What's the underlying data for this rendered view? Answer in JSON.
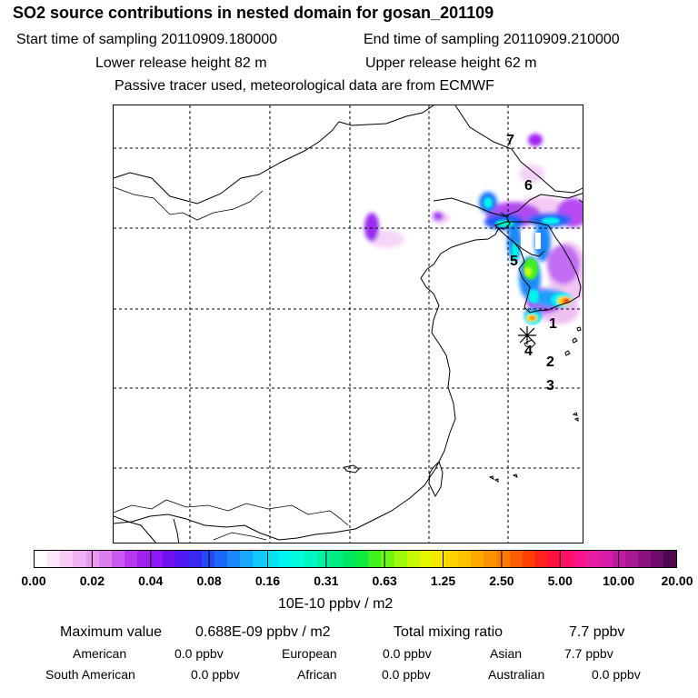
{
  "header": {
    "title": "SO2 source contributions in nested domain for gosan_201109",
    "start_time": "Start time of sampling 20110909.180000",
    "end_time": "End time of sampling 20110909.210000",
    "lower_height": "Lower release height   82 m",
    "upper_height": "Upper release height   62 m",
    "tracer_note": "Passive tracer used, meteorological data are from ECMWF"
  },
  "map": {
    "markers": [
      "1",
      "2",
      "3",
      "4",
      "5",
      "6",
      "7"
    ]
  },
  "colorbar": {
    "ticks": [
      "0.00",
      "0.02",
      "0.04",
      "0.08",
      "0.16",
      "0.31",
      "0.63",
      "1.25",
      "2.50",
      "5.00",
      "10.00",
      "20.00"
    ],
    "unit": "10E-10 ppbv / m2",
    "colors": [
      "#ffffff",
      "#fbe6fb",
      "#f6ccf6",
      "#f0b0f2",
      "#e699ee",
      "#d880ee",
      "#c85af0",
      "#b838f2",
      "#a020f0",
      "#8f18f4",
      "#6e10f0",
      "#5018f2",
      "#3828f4",
      "#2848f8",
      "#1c68fa",
      "#1c88fa",
      "#18a8fa",
      "#12c8f8",
      "#08e0f4",
      "#00f2ee",
      "#00fcdc",
      "#00f8c0",
      "#00f2a4",
      "#00ec84",
      "#00e660",
      "#10ea40",
      "#40f020",
      "#70f412",
      "#a0f80a",
      "#c8fa08",
      "#e8f400",
      "#f8e800",
      "#ffd400",
      "#ffc000",
      "#ffa800",
      "#ff9000",
      "#ff7800",
      "#ff5e00",
      "#ff4000",
      "#ff2020",
      "#ff1040",
      "#ff1066",
      "#f8148a",
      "#e81ca0",
      "#d81caa",
      "#c01a9e",
      "#a41890",
      "#8a1280",
      "#6e0c6a",
      "#4e0850"
    ]
  },
  "stats": {
    "max_label": "Maximum value",
    "max_value": "0.688E-09 ppbv / m2",
    "total_label": "Total mixing ratio",
    "total_value": "7.7 ppbv",
    "sources": [
      {
        "name": "American",
        "value": "0.0 ppbv"
      },
      {
        "name": "European",
        "value": "0.0 ppbv"
      },
      {
        "name": "Asian",
        "value": "7.7 ppbv"
      },
      {
        "name": "South American",
        "value": "0.0 ppbv"
      },
      {
        "name": "African",
        "value": "0.0 ppbv"
      },
      {
        "name": "Australian",
        "value": "0.0 ppbv"
      }
    ]
  }
}
